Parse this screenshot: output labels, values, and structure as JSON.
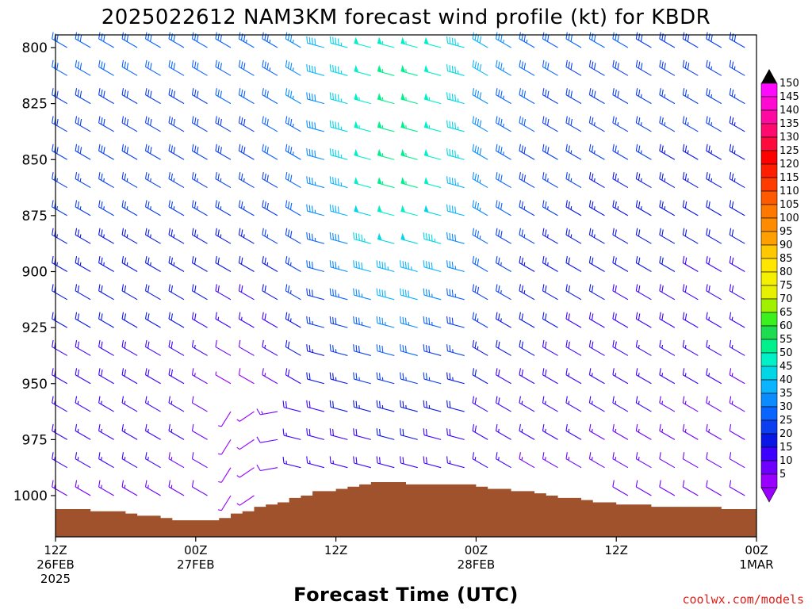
{
  "chart_data": {
    "type": "wind-barb-time-height",
    "title": "2025022612 NAM3KM forecast wind profile (kt) for KBDR",
    "xlabel": "Forecast Time (UTC)",
    "ylabel": "",
    "y_ticks": [
      "800",
      "825",
      "850",
      "875",
      "900",
      "925",
      "950",
      "975",
      "1000"
    ],
    "ylim": [
      1007,
      795
    ],
    "x_ticks": [
      {
        "hour": 0,
        "lines": [
          "12Z",
          "26FEB",
          "2025"
        ]
      },
      {
        "hour": 12,
        "lines": [
          "00Z",
          "27FEB"
        ]
      },
      {
        "hour": 24,
        "lines": [
          "12Z"
        ]
      },
      {
        "hour": 36,
        "lines": [
          "00Z",
          "28FEB"
        ]
      },
      {
        "hour": 48,
        "lines": [
          "12Z"
        ]
      },
      {
        "hour": 60,
        "lines": [
          "00Z",
          "1MAR"
        ]
      }
    ],
    "xlim": [
      0,
      60
    ],
    "time_step_hours": 2,
    "levels_hpa": [
      800,
      812.5,
      825,
      837.5,
      850,
      862.5,
      875,
      887.5,
      900,
      912.5,
      925,
      937.5,
      950,
      962.5,
      975,
      987.5,
      1000
    ],
    "colorbar": {
      "labels": [
        "150",
        "145",
        "140",
        "135",
        "130",
        "125",
        "120",
        "115",
        "110",
        "105",
        "100",
        "95",
        "90",
        "85",
        "80",
        "75",
        "70",
        "65",
        "60",
        "55",
        "50",
        "45",
        "40",
        "35",
        "30",
        "25",
        "20",
        "15",
        "10",
        "5"
      ],
      "colors": [
        "#9a00ff",
        "#6e00ff",
        "#3c00ff",
        "#0a16e6",
        "#0a3ef0",
        "#0a64ff",
        "#0a8cff",
        "#0ab4ff",
        "#00d7e6",
        "#00f0c8",
        "#00f08c",
        "#1edc50",
        "#3cf01e",
        "#a0f000",
        "#e6f000",
        "#f5f000",
        "#ffe600",
        "#ffc800",
        "#ffa000",
        "#ff8c00",
        "#ff7800",
        "#ff5a00",
        "#ff3c00",
        "#ff1e00",
        "#ff0000",
        "#ff0a3c",
        "#ff0a6e",
        "#ff0aa0",
        "#ff0ad2",
        "#ff0aff"
      ]
    },
    "terrain_color": "#a0522d",
    "terrain_surface_hpa": [
      1006,
      1006,
      1006,
      1007,
      1007,
      1007,
      1008,
      1009,
      1009,
      1010,
      1011,
      1011,
      1011,
      1011,
      1010,
      1008,
      1007,
      1005,
      1004,
      1003,
      1001,
      1000,
      998,
      998,
      997,
      996,
      995,
      994,
      994,
      994,
      995,
      995,
      995,
      995,
      995,
      995,
      996,
      997,
      997,
      998,
      998,
      999,
      1000,
      1001,
      1001,
      1002,
      1003,
      1003,
      1004,
      1004,
      1004,
      1005,
      1005,
      1005,
      1005,
      1005,
      1005,
      1006,
      1006,
      1006,
      1006
    ]
  },
  "credit": "coolwx.com/models"
}
